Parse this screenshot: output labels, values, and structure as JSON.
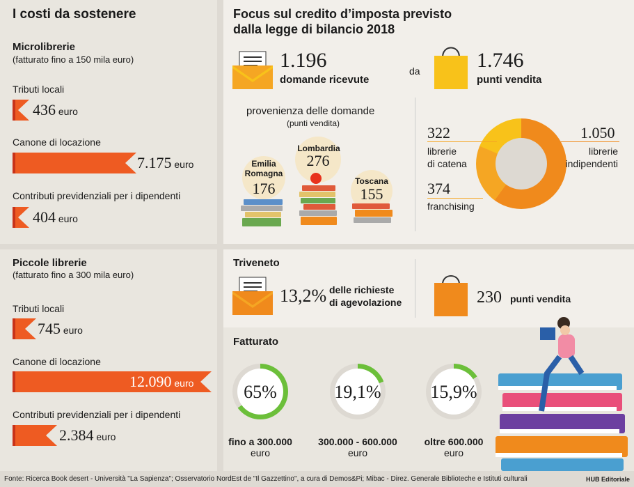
{
  "left": {
    "title": "I costi da sostenere",
    "micro": {
      "title": "Microlibrerie",
      "subtitle": "(fatturato fino a 150 mila euro)",
      "items": [
        {
          "label": "Tributi locali",
          "value": "436",
          "unit": "euro"
        },
        {
          "label": "Canone di locazione",
          "value": "7.175",
          "unit": "euro"
        },
        {
          "label": "Contributi previdenziali per i dipendenti",
          "value": "404",
          "unit": "euro"
        }
      ]
    },
    "piccole": {
      "title": "Piccole librerie",
      "subtitle": "(fatturato fino a 300 mila euro)",
      "items": [
        {
          "label": "Tributi locali",
          "value": "745",
          "unit": "euro"
        },
        {
          "label": "Canone di locazione",
          "value": "12.090",
          "unit": "euro"
        },
        {
          "label": "Contributi previdenziali per i dipendenti",
          "value": "2.384",
          "unit": "euro"
        }
      ]
    }
  },
  "focus": {
    "title_line1": "Focus sul credito d’imposta previsto",
    "title_line2": "dalla legge di bilancio 2018",
    "domande_value": "1.196",
    "domande_label": "domande ricevute",
    "da": "da",
    "punti_value": "1.746",
    "punti_label": "punti vendita",
    "prov_title": "provenienza delle domande",
    "prov_sub": "(punti vendita)",
    "regions": [
      {
        "name1": "Emilia",
        "name2": "Romagna",
        "value": "176"
      },
      {
        "name1": "Lombardia",
        "name2": "",
        "value": "276"
      },
      {
        "name1": "Toscana",
        "name2": "",
        "value": "155"
      }
    ],
    "donut": {
      "catena_value": "322",
      "catena_label1": "librerie",
      "catena_label2": "di catena",
      "indip_value": "1.050",
      "indip_label1": "librerie",
      "indip_label2": "indipendenti",
      "fran_value": "374",
      "fran_label": "franchising",
      "colors": {
        "indipendenti": "#f08a1c",
        "catena": "#f8c21a",
        "franchising": "#f5a623"
      }
    }
  },
  "triveneto": {
    "title": "Triveneto",
    "perc_value": "13,2%",
    "perc_label1": "delle richieste",
    "perc_label2": "di agevolazione",
    "punti_value": "230",
    "punti_label": "punti vendita"
  },
  "fatturato": {
    "title": "Fatturato",
    "items": [
      {
        "value": "65%",
        "pct": 65,
        "label1": "fino a 300.000",
        "label2": "euro"
      },
      {
        "value": "19,1%",
        "pct": 19.1,
        "label1": "300.000 - 600.000",
        "label2": "euro"
      },
      {
        "value": "15,9%",
        "pct": 15.9,
        "label1": "oltre 600.000",
        "label2": "euro"
      }
    ],
    "ring_color": "#6cbf3a"
  },
  "footer": {
    "source": "Fonte: Ricerca Book desert - Università \"La Sapienza\"; Osservatorio NordEst de \"Il Gazzettino\", a cura di Demos&Pi; Mibac - Direz. Generale Biblioteche e Istituti culturali",
    "credit": "HUB Editoriale"
  }
}
